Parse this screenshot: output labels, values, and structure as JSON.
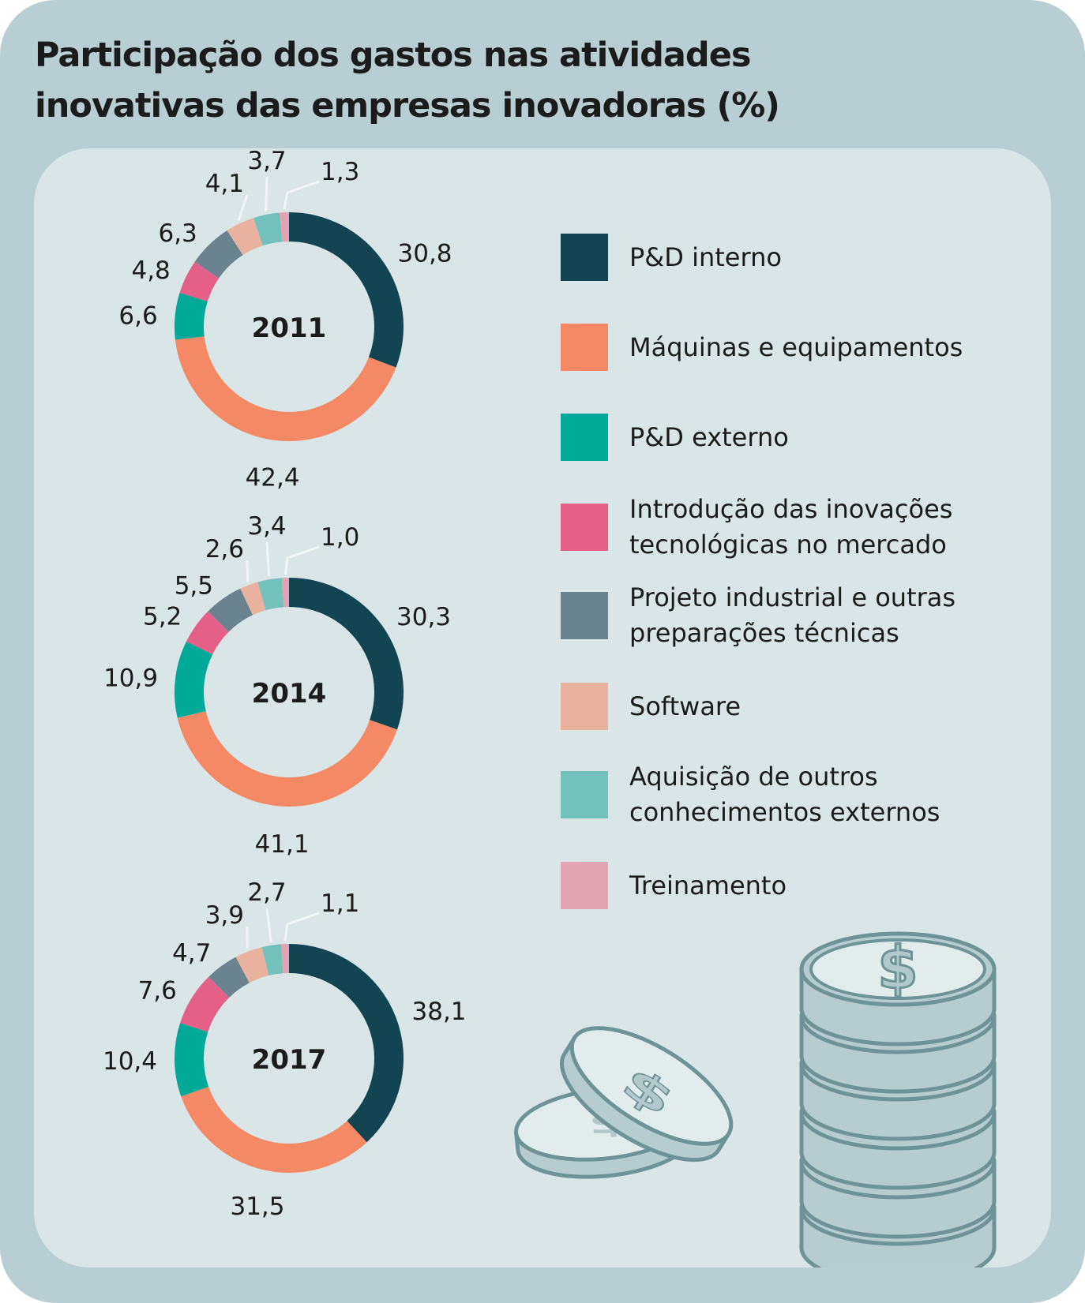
{
  "title": [
    "Participação dos gastos nas atividades",
    "inovativas das empresas inovadoras (%)"
  ],
  "categories": [
    "P&D interno",
    "Máquinas e equipamentos",
    "P&D externo",
    "Introdução das inovações\ntecnológicas no mercado",
    "Projeto industrial e outras\npreparações técnicas",
    "Software",
    "Aquisição de outros\nconhecimentos externos",
    "Treinamento"
  ],
  "colors": [
    "#124452",
    "#f58966",
    "#00a898",
    "#e46089",
    "#6b838f",
    "#e8b29f",
    "#72c1ba",
    "#e2a3b2"
  ],
  "chart_data": [
    {
      "type": "pie",
      "title": "2011",
      "categories": [
        "P&D interno",
        "Máquinas e equipamentos",
        "P&D externo",
        "Introdução das inovações tecnológicas no mercado",
        "Projeto industrial e outras preparações técnicas",
        "Software",
        "Aquisição de outros conhecimentos externos",
        "Treinamento"
      ],
      "values": [
        30.8,
        42.4,
        6.6,
        4.8,
        6.3,
        4.1,
        3.7,
        1.3
      ],
      "labels": [
        "30,8",
        "42,4",
        "6,6",
        "4,8",
        "6,3",
        "4,1",
        "3,7",
        "1,3"
      ]
    },
    {
      "type": "pie",
      "title": "2014",
      "categories": [
        "P&D interno",
        "Máquinas e equipamentos",
        "P&D externo",
        "Introdução das inovações tecnológicas no mercado",
        "Projeto industrial e outras preparações técnicas",
        "Software",
        "Aquisição de outros conhecimentos externos",
        "Treinamento"
      ],
      "values": [
        30.3,
        41.1,
        10.9,
        5.2,
        5.5,
        2.6,
        3.4,
        1.0
      ],
      "labels": [
        "30,3",
        "41,1",
        "10,9",
        "5,2",
        "5,5",
        "2,6",
        "3,4",
        "1,0"
      ]
    },
    {
      "type": "pie",
      "title": "2017",
      "categories": [
        "P&D interno",
        "Máquinas e equipamentos",
        "P&D externo",
        "Introdução das inovações tecnológicas no mercado",
        "Projeto industrial e outras preparações técnicas",
        "Software",
        "Aquisição de outros conhecimentos externos",
        "Treinamento"
      ],
      "values": [
        38.1,
        31.5,
        10.4,
        7.6,
        4.7,
        3.9,
        2.7,
        1.1
      ],
      "labels": [
        "38,1",
        "31,5",
        "10,4",
        "7,6",
        "4,7",
        "3,9",
        "2,7",
        "1,1"
      ]
    }
  ]
}
